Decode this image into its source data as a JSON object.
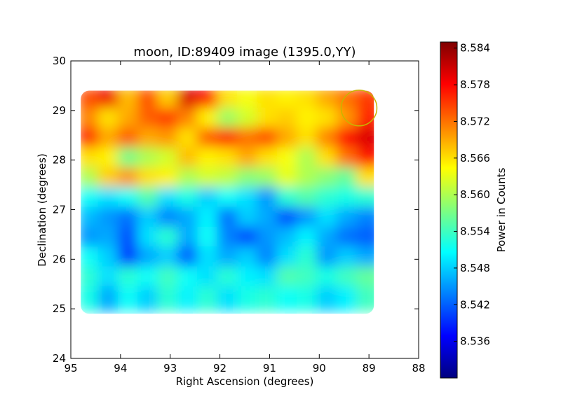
{
  "chart_data": {
    "type": "heatmap",
    "title": "moon, ID:89409 image (1395.0,YY)",
    "xlabel": "Right Ascension (degrees)",
    "ylabel": "Declination (degrees)",
    "xlim": [
      95,
      88
    ],
    "ylim": [
      24,
      30
    ],
    "x_ticks": [
      "95",
      "94",
      "93",
      "92",
      "91",
      "90",
      "89",
      "88"
    ],
    "y_ticks": [
      "24",
      "25",
      "26",
      "27",
      "28",
      "29",
      "30"
    ],
    "colorbar": {
      "label": "Power in Counts",
      "colormap": "jet",
      "vmin": 8.53,
      "vmax": 8.585,
      "ticks": [
        "8.536",
        "8.542",
        "8.548",
        "8.554",
        "8.560",
        "8.566",
        "8.572",
        "8.578",
        "8.584"
      ]
    },
    "data_extent": {
      "ra": [
        94.8,
        88.9
      ],
      "dec": [
        24.9,
        29.4
      ]
    },
    "grid_ra": [
      94.6,
      94.2,
      93.8,
      93.4,
      93.0,
      92.6,
      92.2,
      91.8,
      91.4,
      91.0,
      90.6,
      90.2,
      89.8,
      89.4,
      89.0
    ],
    "grid_dec": [
      29.2,
      28.8,
      28.4,
      28.0,
      27.6,
      27.2,
      26.8,
      26.4,
      26.0,
      25.6,
      25.2
    ],
    "power_grid": [
      [
        8.574,
        8.579,
        8.568,
        8.574,
        8.567,
        8.58,
        8.577,
        8.566,
        8.564,
        8.566,
        8.565,
        8.566,
        8.569,
        8.572,
        8.575
      ],
      [
        8.571,
        8.566,
        8.569,
        8.573,
        8.575,
        8.571,
        8.565,
        8.559,
        8.562,
        8.566,
        8.567,
        8.565,
        8.566,
        8.57,
        8.576
      ],
      [
        8.576,
        8.569,
        8.573,
        8.569,
        8.57,
        8.566,
        8.573,
        8.576,
        8.572,
        8.574,
        8.569,
        8.566,
        8.571,
        8.578,
        8.58
      ],
      [
        8.566,
        8.565,
        8.557,
        8.56,
        8.562,
        8.568,
        8.565,
        8.566,
        8.569,
        8.566,
        8.564,
        8.56,
        8.566,
        8.572,
        8.577
      ],
      [
        8.56,
        8.567,
        8.57,
        8.566,
        8.565,
        8.56,
        8.562,
        8.561,
        8.558,
        8.559,
        8.563,
        8.56,
        8.558,
        8.556,
        8.566
      ],
      [
        8.551,
        8.549,
        8.551,
        8.555,
        8.549,
        8.552,
        8.548,
        8.551,
        8.549,
        8.545,
        8.553,
        8.555,
        8.553,
        8.552,
        8.553
      ],
      [
        8.547,
        8.545,
        8.543,
        8.548,
        8.544,
        8.546,
        8.55,
        8.543,
        8.548,
        8.546,
        8.541,
        8.545,
        8.549,
        8.546,
        8.544
      ],
      [
        8.545,
        8.546,
        8.541,
        8.549,
        8.553,
        8.546,
        8.551,
        8.544,
        8.541,
        8.545,
        8.547,
        8.55,
        8.546,
        8.543,
        8.542
      ],
      [
        8.551,
        8.548,
        8.54,
        8.546,
        8.548,
        8.542,
        8.549,
        8.546,
        8.548,
        8.544,
        8.549,
        8.553,
        8.545,
        8.548,
        8.546
      ],
      [
        8.553,
        8.549,
        8.553,
        8.551,
        8.554,
        8.551,
        8.549,
        8.553,
        8.55,
        8.549,
        8.555,
        8.554,
        8.552,
        8.554,
        8.556
      ],
      [
        8.552,
        8.546,
        8.551,
        8.548,
        8.553,
        8.55,
        8.553,
        8.549,
        8.552,
        8.553,
        8.551,
        8.552,
        8.548,
        8.55,
        8.554
      ]
    ],
    "marker_circle": {
      "ra": 89.2,
      "dec": 29.05,
      "radius_deg": 0.36,
      "color": "#c8b400"
    },
    "colors": {
      "axes": "#000000",
      "background": "#ffffff"
    }
  }
}
